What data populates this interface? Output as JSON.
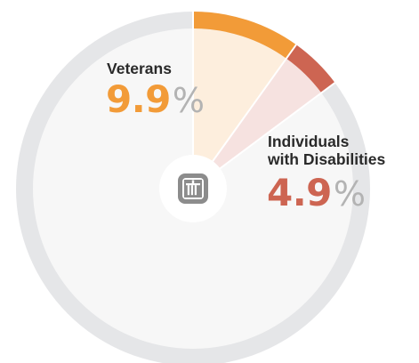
{
  "colors": {
    "ring": "#e5e6e8",
    "background_fill": "#f7f7f7",
    "veterans_ring": "#f29b38",
    "veterans_fill": "#fdeedd",
    "disabilities_ring": "#cd6552",
    "disabilities_fill": "#f6e2e0",
    "logo": "#8c8c8c",
    "percent_sign": "#b3b3b3"
  },
  "logo": {
    "icon": "thunderbird-logo-icon"
  },
  "chart_data": {
    "type": "pie",
    "unit": "%",
    "start_angle": "top",
    "direction": "clockwise",
    "slices": [
      {
        "label": "Veterans",
        "value": 9.9,
        "value_text": "9.9",
        "percent_sign": "%",
        "ring_color": "#f29b38",
        "fill_color": "#fdeedd",
        "text_color": "#f29b38"
      },
      {
        "label_lines": [
          "Individuals",
          "with Disabilities"
        ],
        "value": 4.9,
        "value_text": "4.9",
        "percent_sign": "%",
        "ring_color": "#cd6552",
        "fill_color": "#f6e2e0",
        "text_color": "#cd6552"
      }
    ]
  }
}
